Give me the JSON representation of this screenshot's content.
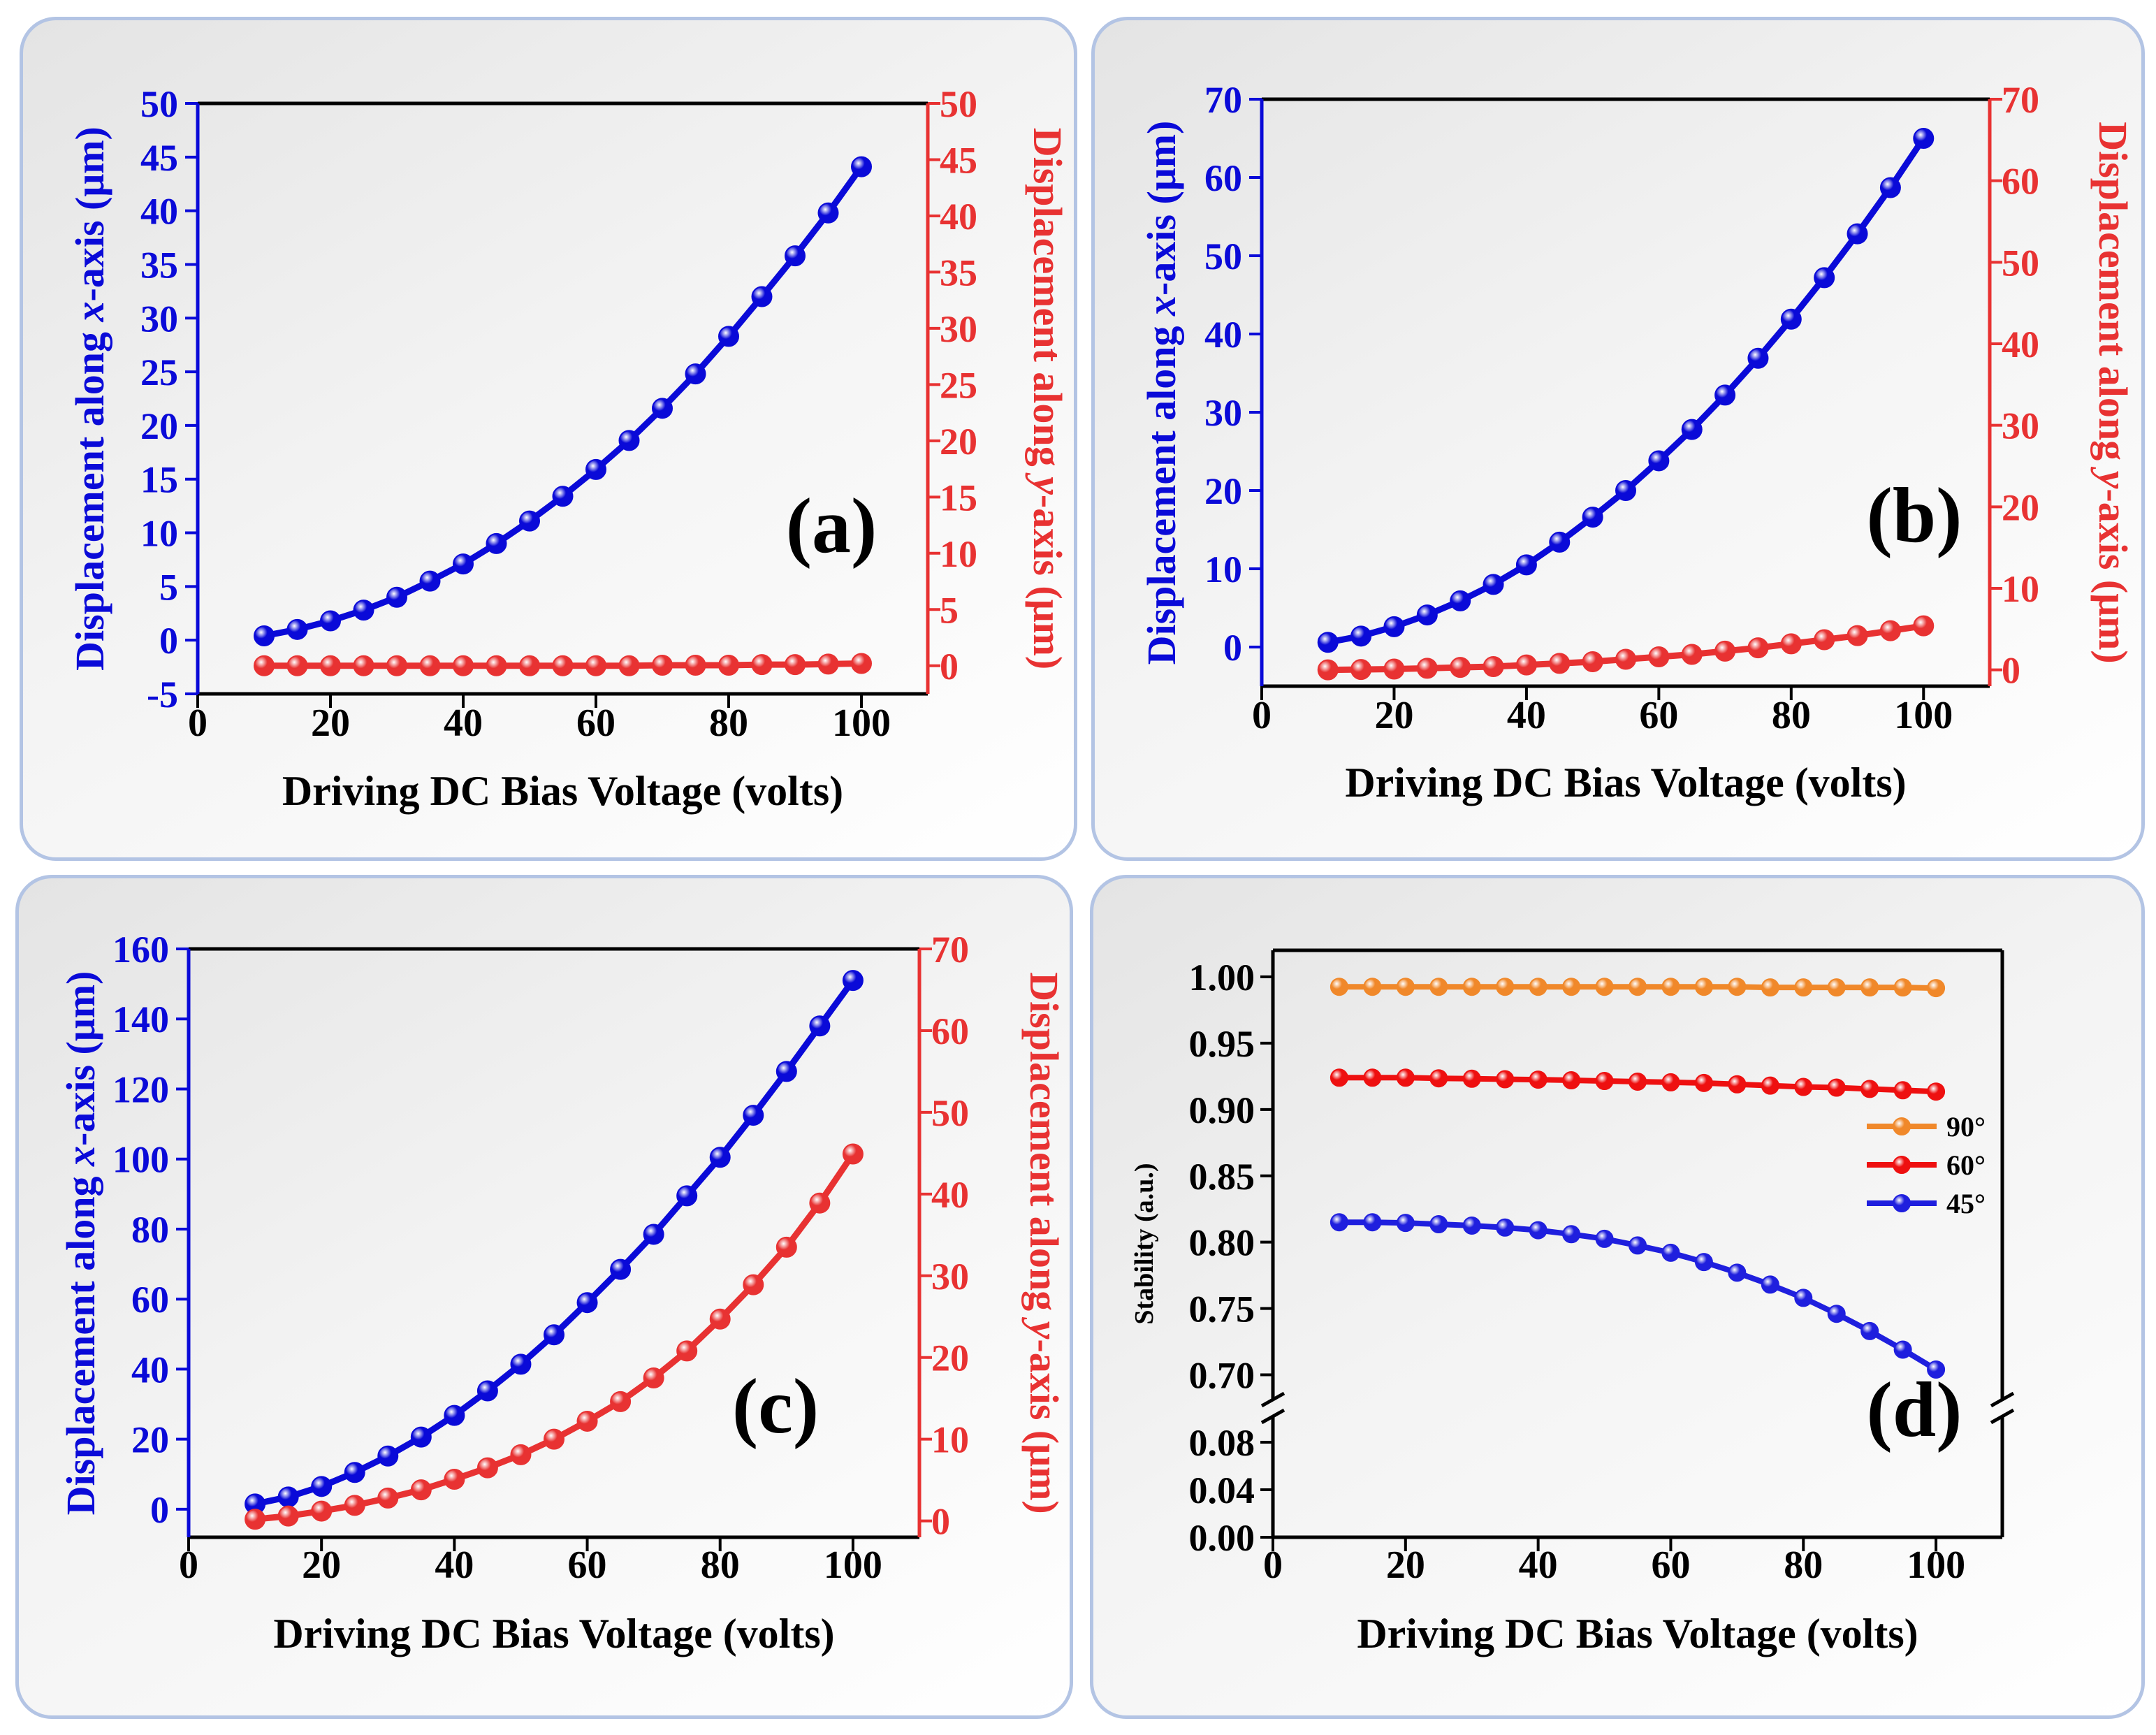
{
  "chart_data": [
    {
      "id": "a",
      "type": "line",
      "panel_label": "(a)",
      "xlabel": "Driving DC Bias Voltage (volts)",
      "ylabel": [
        "Displacement along ",
        "x",
        "-axis (μm)"
      ],
      "y2label": [
        "Displacement along ",
        "y",
        "-axis (μm)"
      ],
      "xlim": [
        0,
        110
      ],
      "xticks": [
        0,
        20,
        40,
        60,
        80,
        100
      ],
      "ylim": [
        -5,
        50
      ],
      "yticks": [
        -5,
        0,
        5,
        10,
        15,
        20,
        25,
        30,
        35,
        40,
        45,
        50
      ],
      "y2lim": [
        -2.5,
        50
      ],
      "y2ticks": [
        0,
        5,
        10,
        15,
        20,
        25,
        30,
        35,
        40,
        45,
        50
      ],
      "x": [
        10,
        15,
        20,
        25,
        30,
        35,
        40,
        45,
        50,
        55,
        60,
        65,
        70,
        75,
        80,
        85,
        90,
        95,
        100
      ],
      "series": [
        {
          "name": "x-axis displacement",
          "axis": "left",
          "color": "#0a0ad8",
          "values": [
            0.4,
            1.0,
            1.8,
            2.8,
            4.0,
            5.5,
            7.1,
            9.0,
            11.1,
            13.4,
            15.9,
            18.6,
            21.6,
            24.8,
            28.3,
            32.0,
            35.8,
            39.8,
            44.1
          ]
        },
        {
          "name": "y-axis displacement",
          "axis": "right",
          "color": "#e83232",
          "values": [
            0.0,
            0.0,
            0.0,
            0.0,
            0.0,
            0.0,
            0.0,
            0.0,
            0.0,
            0.0,
            0.0,
            0.0,
            0.05,
            0.05,
            0.05,
            0.1,
            0.1,
            0.15,
            0.2
          ]
        }
      ]
    },
    {
      "id": "b",
      "type": "line",
      "panel_label": "(b)",
      "xlabel": "Driving DC Bias Voltage (volts)",
      "ylabel": [
        "Displacement along ",
        "x",
        "-axis (μm)"
      ],
      "y2label": [
        "Displacement along ",
        "y",
        "-axis (μm)"
      ],
      "xlim": [
        0,
        110
      ],
      "xticks": [
        0,
        20,
        40,
        60,
        80,
        100
      ],
      "ylim": [
        -5,
        70
      ],
      "yticks": [
        0,
        10,
        20,
        30,
        40,
        50,
        60,
        70
      ],
      "y2lim": [
        -2,
        70
      ],
      "y2ticks": [
        0,
        10,
        20,
        30,
        40,
        50,
        60,
        70
      ],
      "x": [
        10,
        15,
        20,
        25,
        30,
        35,
        40,
        45,
        50,
        55,
        60,
        65,
        70,
        75,
        80,
        85,
        90,
        95,
        100
      ],
      "series": [
        {
          "name": "x-axis displacement",
          "axis": "left",
          "color": "#0a0ad8",
          "values": [
            0.6,
            1.4,
            2.6,
            4.1,
            5.9,
            8.0,
            10.5,
            13.4,
            16.6,
            20.0,
            23.8,
            27.8,
            32.2,
            36.9,
            41.9,
            47.2,
            52.8,
            58.7,
            65.0
          ]
        },
        {
          "name": "y-axis displacement",
          "axis": "right",
          "color": "#e83232",
          "values": [
            0.0,
            0.05,
            0.1,
            0.2,
            0.3,
            0.4,
            0.6,
            0.8,
            1.0,
            1.3,
            1.6,
            1.9,
            2.3,
            2.7,
            3.2,
            3.7,
            4.2,
            4.8,
            5.4
          ]
        }
      ]
    },
    {
      "id": "c",
      "type": "line",
      "panel_label": "(c)",
      "xlabel": "Driving DC Bias Voltage (volts)",
      "ylabel": [
        "Displacement along ",
        "x",
        "-axis (μm)"
      ],
      "y2label": [
        "Displacement along ",
        "y",
        "-axis (μm)"
      ],
      "xlim": [
        0,
        110
      ],
      "xticks": [
        0,
        20,
        40,
        60,
        80,
        100
      ],
      "ylim": [
        -8,
        160
      ],
      "yticks": [
        0,
        20,
        40,
        60,
        80,
        100,
        120,
        140,
        160
      ],
      "y2lim": [
        -2,
        70
      ],
      "y2ticks": [
        0,
        10,
        20,
        30,
        40,
        50,
        60,
        70
      ],
      "x": [
        10,
        15,
        20,
        25,
        30,
        35,
        40,
        45,
        50,
        55,
        60,
        65,
        70,
        75,
        80,
        85,
        90,
        95,
        100
      ],
      "series": [
        {
          "name": "x-axis displacement",
          "axis": "left",
          "color": "#0a0ad8",
          "values": [
            1.5,
            3.5,
            6.5,
            10.5,
            15.2,
            20.6,
            26.8,
            33.8,
            41.4,
            49.8,
            59.0,
            68.5,
            78.5,
            89.5,
            100.5,
            112.5,
            125.0,
            138.0,
            151.0
          ]
        },
        {
          "name": "y-axis displacement",
          "axis": "right",
          "color": "#e83232",
          "values": [
            0.2,
            0.6,
            1.2,
            1.9,
            2.8,
            3.8,
            5.1,
            6.5,
            8.1,
            10.0,
            12.2,
            14.6,
            17.5,
            20.8,
            24.7,
            28.9,
            33.5,
            38.9,
            44.9
          ]
        }
      ]
    },
    {
      "id": "d",
      "type": "line",
      "panel_label": "(d)",
      "xlabel": "Driving DC Bias Voltage (volts)",
      "ylabel": "Stability (a.u.)",
      "xlim": [
        0,
        110
      ],
      "xticks": [
        0,
        20,
        40,
        60,
        80,
        100
      ],
      "ylim_upper": [
        0.675,
        1.02
      ],
      "yticks_upper": [
        0.7,
        0.75,
        0.8,
        0.85,
        0.9,
        0.95,
        1.0
      ],
      "ylim_lower": [
        0,
        0.1
      ],
      "yticks_lower": [
        0.0,
        0.04,
        0.08
      ],
      "x": [
        10,
        15,
        20,
        25,
        30,
        35,
        40,
        45,
        50,
        55,
        60,
        65,
        70,
        75,
        80,
        85,
        90,
        95,
        100
      ],
      "series": [
        {
          "name": "90°",
          "color": "#f0882a",
          "values": [
            0.9925,
            0.9925,
            0.9925,
            0.9925,
            0.9925,
            0.9925,
            0.9925,
            0.9925,
            0.9925,
            0.9925,
            0.9925,
            0.9925,
            0.9925,
            0.992,
            0.992,
            0.992,
            0.992,
            0.992,
            0.9915
          ]
        },
        {
          "name": "60°",
          "color": "#ee1010",
          "values": [
            0.924,
            0.924,
            0.924,
            0.9235,
            0.9232,
            0.9228,
            0.9225,
            0.922,
            0.9215,
            0.921,
            0.9205,
            0.92,
            0.919,
            0.918,
            0.917,
            0.9165,
            0.9155,
            0.9145,
            0.9135
          ]
        },
        {
          "name": "45°",
          "color": "#1f1fde",
          "values": [
            0.815,
            0.815,
            0.8145,
            0.8135,
            0.8125,
            0.811,
            0.809,
            0.806,
            0.8025,
            0.7975,
            0.792,
            0.785,
            0.777,
            0.768,
            0.758,
            0.746,
            0.733,
            0.719,
            0.704
          ]
        }
      ]
    }
  ]
}
